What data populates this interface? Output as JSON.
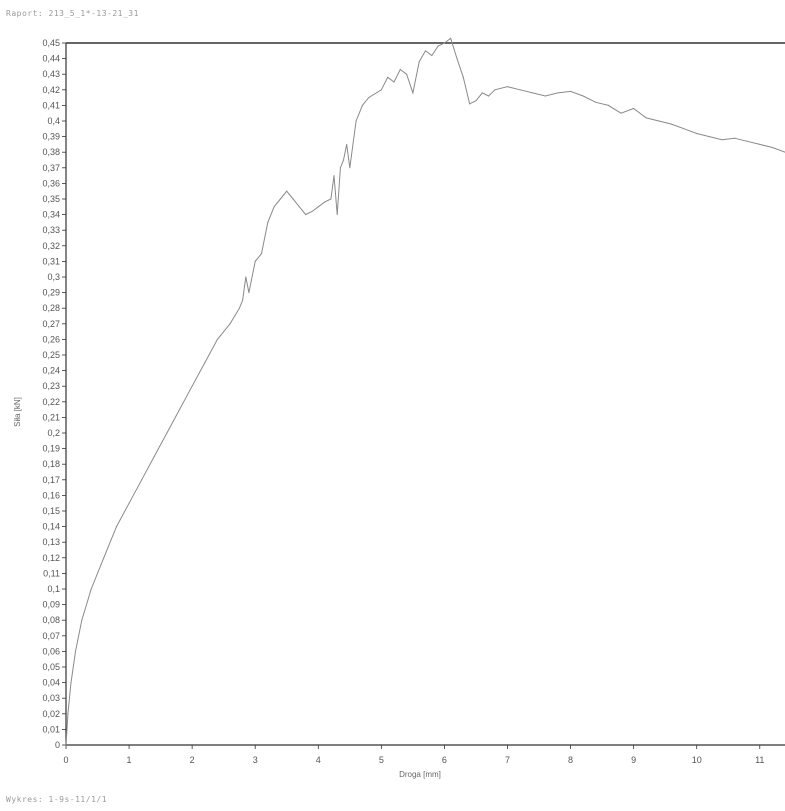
{
  "header_text": "Raport: 213_5_1*-13-21_31",
  "footer_text": "Wykres: 1-9s-11/1/1",
  "chart_data": {
    "type": "line",
    "title": "",
    "xlabel": "Droga [mm]",
    "ylabel": "Siła [kN]",
    "xlim": [
      0,
      11.4
    ],
    "ylim": [
      0,
      0.45
    ],
    "x_ticks": [
      0,
      1,
      2,
      3,
      4,
      5,
      6,
      7,
      8,
      9,
      10,
      11
    ],
    "x_tick_labels": [
      "0",
      "1",
      "2",
      "3",
      "4",
      "5",
      "6",
      "7",
      "8",
      "9",
      "10",
      "11"
    ],
    "y_ticks": [
      0,
      0.01,
      0.02,
      0.03,
      0.04,
      0.05,
      0.06,
      0.07,
      0.08,
      0.09,
      0.1,
      0.11,
      0.12,
      0.13,
      0.14,
      0.15,
      0.16,
      0.17,
      0.18,
      0.19,
      0.2,
      0.21,
      0.22,
      0.23,
      0.24,
      0.25,
      0.26,
      0.27,
      0.28,
      0.29,
      0.3,
      0.31,
      0.32,
      0.33,
      0.34,
      0.35,
      0.36,
      0.37,
      0.38,
      0.39,
      0.4,
      0.41,
      0.42,
      0.43,
      0.44,
      0.45
    ],
    "y_tick_labels": [
      "0",
      "0,01",
      "0,02",
      "0,03",
      "0,04",
      "0,05",
      "0,06",
      "0,07",
      "0,08",
      "0,09",
      "0,1",
      "0,11",
      "0,12",
      "0,13",
      "0,14",
      "0,15",
      "0,16",
      "0,17",
      "0,18",
      "0,19",
      "0,2",
      "0,21",
      "0,22",
      "0,23",
      "0,24",
      "0,25",
      "0,26",
      "0,27",
      "0,28",
      "0,29",
      "0,3",
      "0,31",
      "0,32",
      "0,33",
      "0,34",
      "0,35",
      "0,36",
      "0,37",
      "0,38",
      "0,39",
      "0,4",
      "0,41",
      "0,42",
      "0,43",
      "0,44",
      "0,45"
    ],
    "grid": false,
    "colors": {
      "line": "#8a8a8a",
      "axis": "#333333",
      "thick_segment": "#333333"
    },
    "series": [
      {
        "x": [
          0,
          0.03,
          0.08,
          0.15,
          0.25,
          0.4,
          0.6,
          0.8,
          1.0,
          1.2,
          1.4,
          1.6,
          1.8,
          2.0,
          2.2,
          2.4,
          2.6,
          2.75,
          2.8,
          2.85,
          2.9,
          3.0,
          3.1,
          3.2,
          3.3,
          3.4,
          3.5,
          3.6,
          3.7,
          3.8,
          3.9,
          4.0,
          4.1,
          4.2,
          4.25,
          4.3,
          4.35,
          4.4,
          4.45,
          4.5,
          4.6,
          4.7,
          4.8,
          5.0,
          5.1,
          5.2,
          5.3,
          5.4,
          5.5,
          5.6,
          5.7,
          5.8,
          5.9,
          6.0,
          6.1,
          6.2,
          6.3,
          6.4,
          6.5,
          6.6,
          6.7,
          6.8,
          7.0,
          7.2,
          7.4,
          7.6,
          7.8,
          8.0,
          8.2,
          8.4,
          8.6,
          8.8,
          9.0,
          9.2,
          9.4,
          9.6,
          9.8,
          10.0,
          10.2,
          10.4,
          10.6,
          10.8,
          11.0,
          11.2,
          11.4
        ],
        "y": [
          0,
          0.02,
          0.04,
          0.06,
          0.08,
          0.1,
          0.12,
          0.14,
          0.155,
          0.17,
          0.185,
          0.2,
          0.215,
          0.23,
          0.245,
          0.26,
          0.27,
          0.28,
          0.285,
          0.3,
          0.29,
          0.31,
          0.315,
          0.335,
          0.345,
          0.35,
          0.355,
          0.35,
          0.345,
          0.34,
          0.342,
          0.345,
          0.348,
          0.35,
          0.365,
          0.34,
          0.37,
          0.375,
          0.385,
          0.37,
          0.4,
          0.41,
          0.415,
          0.42,
          0.428,
          0.425,
          0.433,
          0.43,
          0.418,
          0.438,
          0.445,
          0.442,
          0.448,
          0.45,
          0.453,
          0.44,
          0.428,
          0.411,
          0.413,
          0.418,
          0.416,
          0.42,
          0.422,
          0.42,
          0.418,
          0.416,
          0.418,
          0.419,
          0.416,
          0.412,
          0.41,
          0.405,
          0.408,
          0.402,
          0.4,
          0.398,
          0.395,
          0.392,
          0.39,
          0.388,
          0.389,
          0.387,
          0.385,
          0.383,
          0.38
        ]
      }
    ]
  }
}
